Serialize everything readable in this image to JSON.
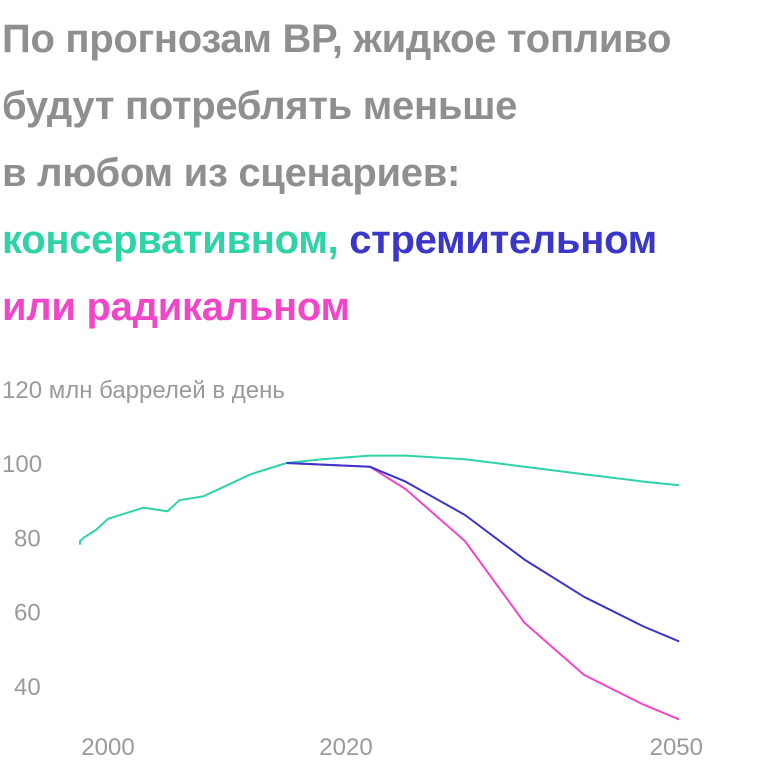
{
  "headline": {
    "line1": "По прогнозам ВР, жидкое топливо",
    "line2": "будут потреблять меньше",
    "line3": "в любом из сценариев:",
    "scenario_conservative": "консервативном,",
    "scenario_fast": "стремительном",
    "line5_prefix": "или",
    "scenario_radical": "радикальном"
  },
  "colors": {
    "title": "#8f8f8f",
    "conservative": "#2ed3a8",
    "fast": "#3a36c8",
    "radical": "#f046c8",
    "axis_text": "#9a9a9a"
  },
  "chart_data": {
    "type": "line",
    "ylabel": "120 млн баррелей в день",
    "y_ticks": [
      100,
      80,
      60,
      40
    ],
    "x_ticks": [
      2000,
      2020,
      2050
    ],
    "ylim": [
      30,
      120
    ],
    "xlim": [
      1997,
      2050
    ],
    "grid": false,
    "series": [
      {
        "name": "консервативном",
        "color_key": "conservative",
        "x": [
          1995,
          1997,
          1998,
          1999,
          2000,
          2002,
          2003,
          2004,
          2005,
          2006,
          2008,
          2010,
          2012,
          2015,
          2018,
          2022,
          2025,
          2030,
          2035,
          2040,
          2045,
          2048
        ],
        "y": [
          78,
          79,
          80,
          82,
          85,
          87,
          88,
          87.5,
          87,
          90,
          91,
          94,
          97,
          100,
          101,
          102,
          102,
          101,
          99,
          97,
          95,
          94
        ]
      },
      {
        "name": "стремительном",
        "color_key": "fast",
        "x": [
          2015,
          2022,
          2025,
          2030,
          2035,
          2040,
          2045,
          2048
        ],
        "y": [
          100,
          99,
          95,
          86,
          74,
          64,
          56,
          52
        ]
      },
      {
        "name": "радикальном",
        "color_key": "radical",
        "x": [
          2015,
          2022,
          2025,
          2030,
          2035,
          2040,
          2045,
          2048
        ],
        "y": [
          100,
          99,
          93,
          79,
          57,
          43,
          35,
          31
        ]
      }
    ]
  }
}
